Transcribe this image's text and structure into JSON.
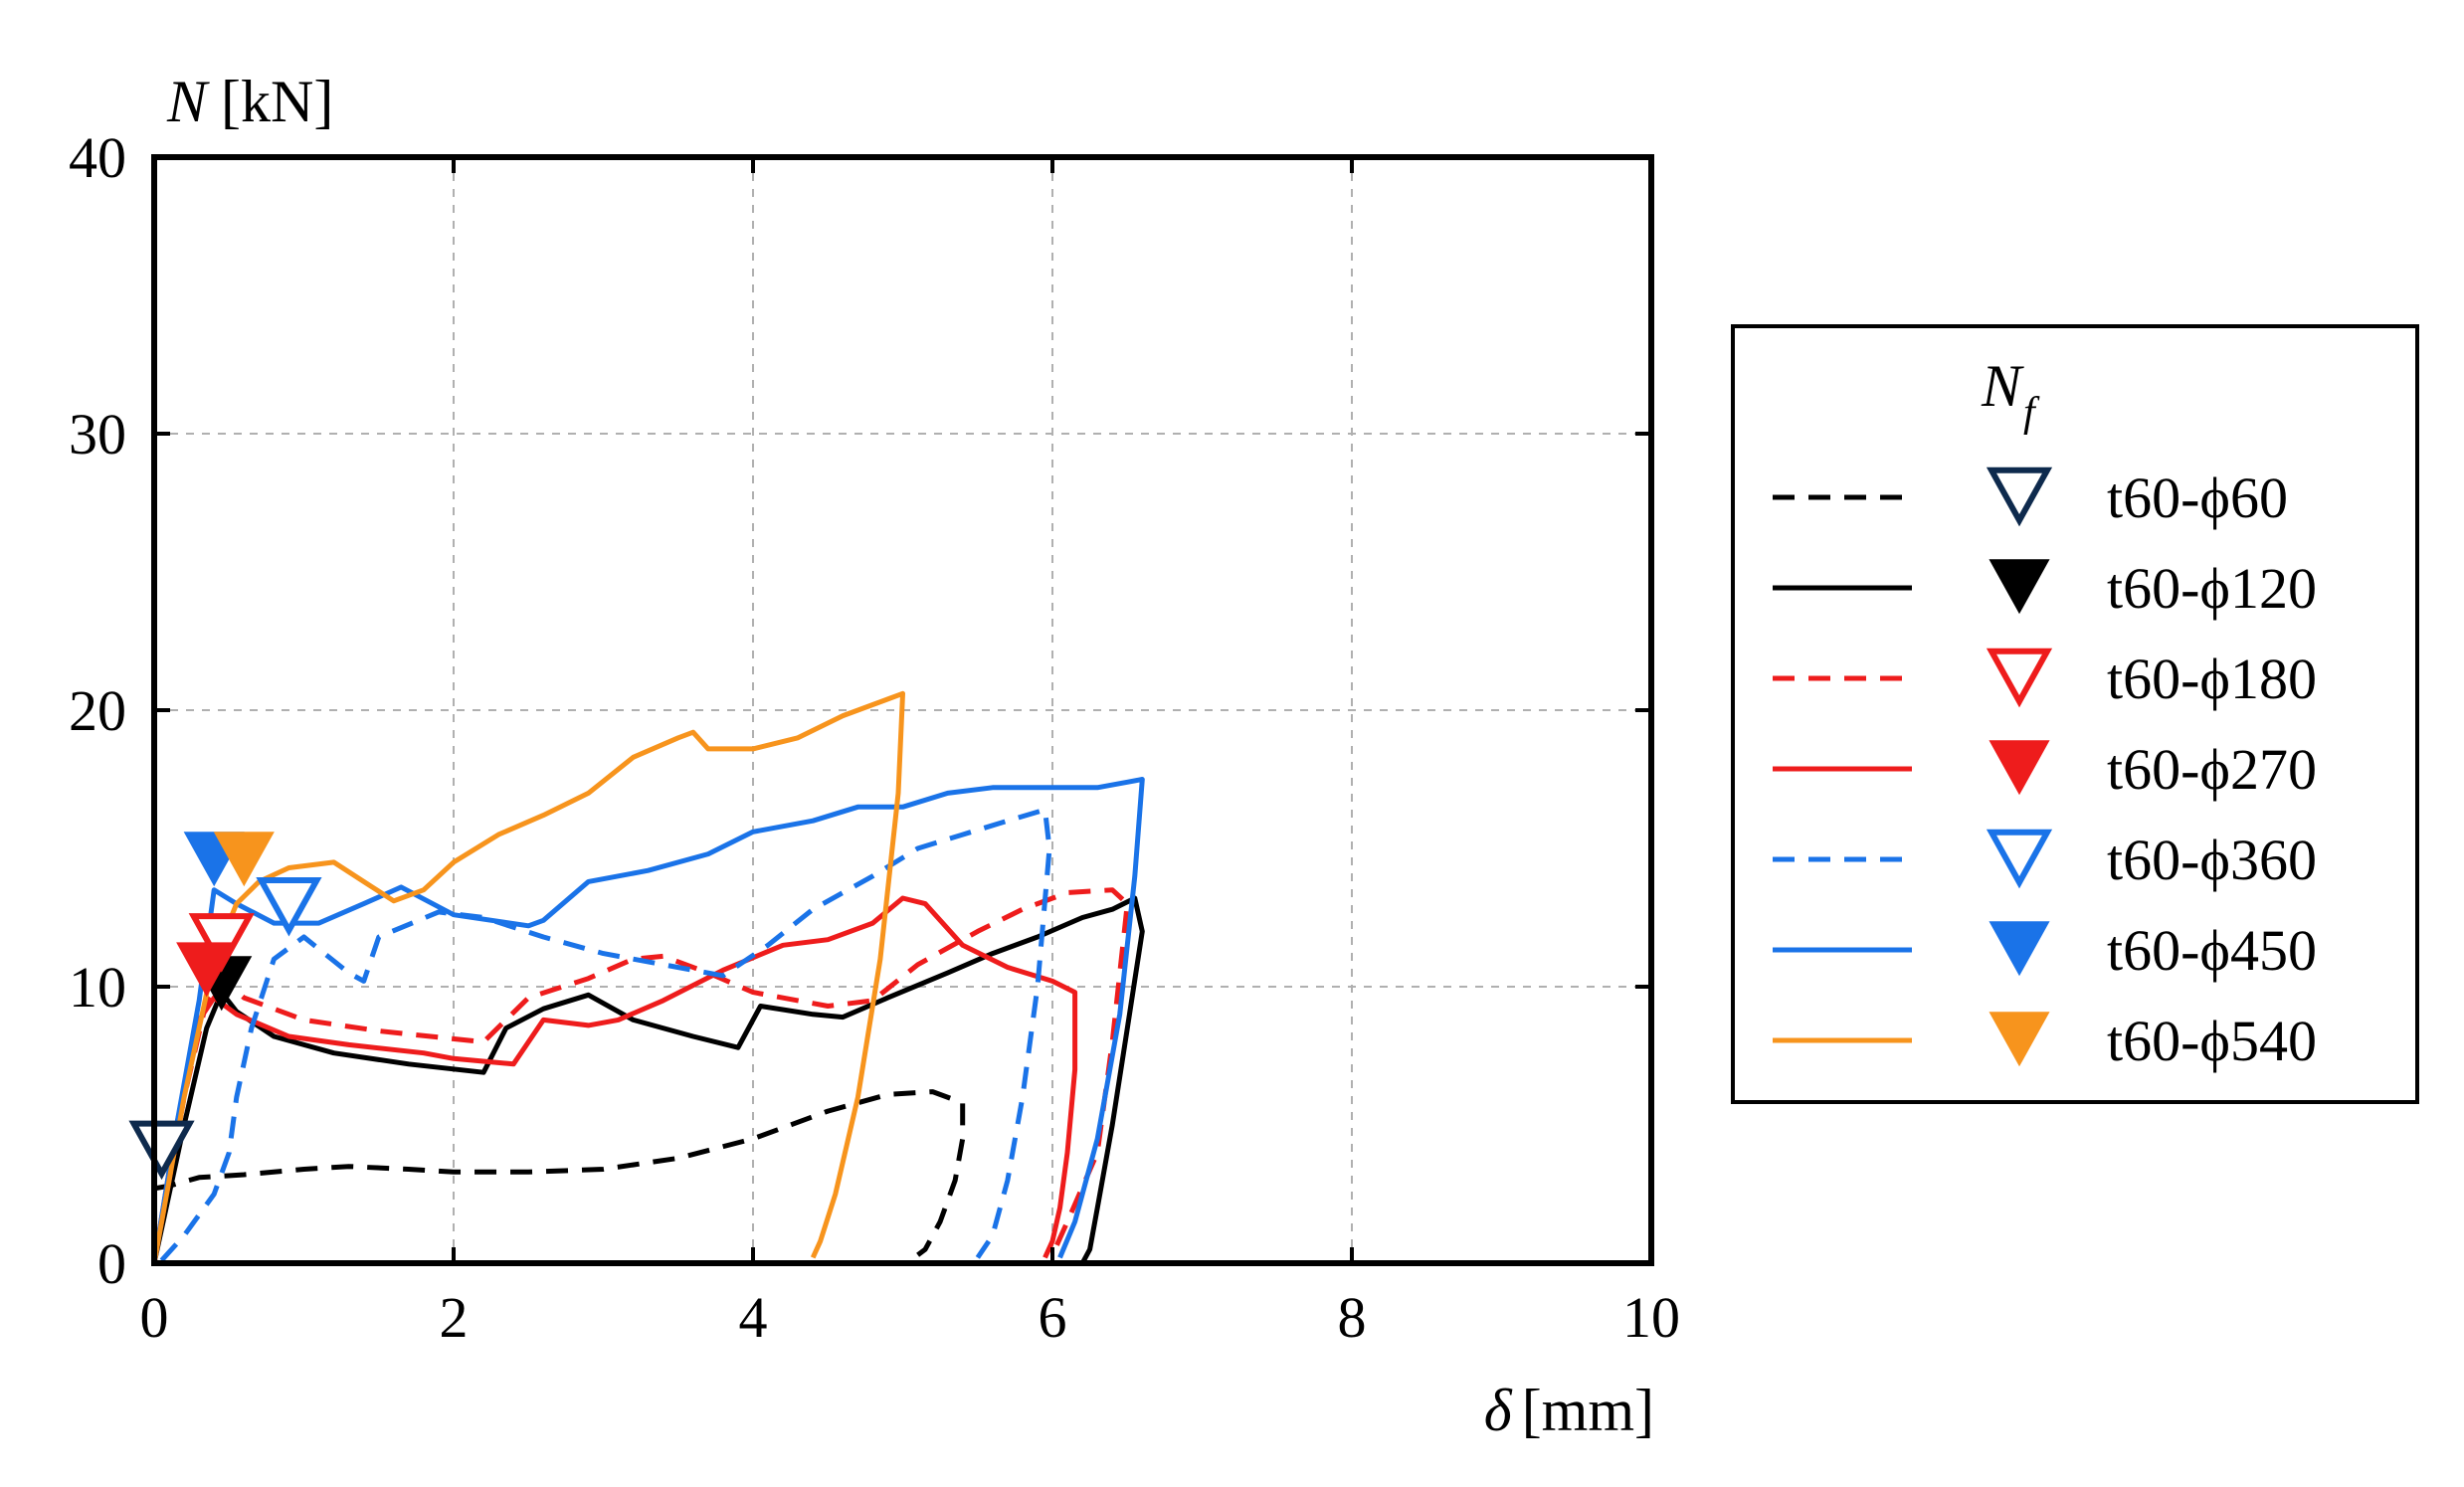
{
  "chart_data": {
    "type": "line",
    "title": "",
    "xlabel_symbol": "δ",
    "xlabel_unit": "[mm]",
    "ylabel_symbol": "N",
    "ylabel_unit": "[kN]",
    "xlim": [
      0,
      10
    ],
    "ylim": [
      0,
      40
    ],
    "xticks": [
      "0",
      "2",
      "4",
      "6",
      "8",
      "10"
    ],
    "yticks": [
      "0",
      "10",
      "20",
      "30",
      "40"
    ],
    "grid": true,
    "legend": {
      "position": "right",
      "title_base": "N",
      "title_sub": "f"
    },
    "colors": {
      "navy": "#0e2a4d",
      "black": "#000000",
      "red": "#ee1c1c",
      "blue": "#1a73e8",
      "orange": "#f7941d",
      "grid": "#b0b0b0"
    },
    "series": [
      {
        "name": "t60-ϕ60",
        "line_color": "black",
        "dash": "dash",
        "marker_color": "navy",
        "marker_filled": false,
        "marker": [
          0.05,
          4.0
        ],
        "points": [
          [
            0,
            2.7
          ],
          [
            0.1,
            2.8
          ],
          [
            0.3,
            3.1
          ],
          [
            0.6,
            3.2
          ],
          [
            1.0,
            3.4
          ],
          [
            1.3,
            3.5
          ],
          [
            1.7,
            3.4
          ],
          [
            2.0,
            3.3
          ],
          [
            2.5,
            3.3
          ],
          [
            3.0,
            3.4
          ],
          [
            3.5,
            3.8
          ],
          [
            4.0,
            4.5
          ],
          [
            4.5,
            5.5
          ],
          [
            4.9,
            6.1
          ],
          [
            5.2,
            6.2
          ],
          [
            5.4,
            5.8
          ],
          [
            5.4,
            4.5
          ],
          [
            5.35,
            3.0
          ],
          [
            5.25,
            1.5
          ],
          [
            5.15,
            0.5
          ],
          [
            5.1,
            0.3
          ]
        ]
      },
      {
        "name": "t60-ϕ120",
        "line_color": "black",
        "dash": "solid",
        "marker_color": "black",
        "marker_filled": true,
        "marker": [
          0.45,
          10.0
        ],
        "points": [
          [
            0,
            0
          ],
          [
            0.2,
            5
          ],
          [
            0.35,
            8.5
          ],
          [
            0.45,
            9.8
          ],
          [
            0.55,
            9.1
          ],
          [
            0.8,
            8.2
          ],
          [
            1.2,
            7.6
          ],
          [
            1.7,
            7.2
          ],
          [
            2.2,
            6.9
          ],
          [
            2.35,
            8.5
          ],
          [
            2.6,
            9.2
          ],
          [
            2.9,
            9.7
          ],
          [
            3.2,
            8.8
          ],
          [
            3.6,
            8.2
          ],
          [
            3.9,
            7.8
          ],
          [
            4.05,
            9.3
          ],
          [
            4.4,
            9.0
          ],
          [
            4.6,
            8.9
          ],
          [
            4.9,
            9.6
          ],
          [
            5.3,
            10.5
          ],
          [
            5.6,
            11.2
          ],
          [
            5.9,
            11.8
          ],
          [
            6.2,
            12.5
          ],
          [
            6.4,
            12.8
          ],
          [
            6.55,
            13.2
          ],
          [
            6.6,
            12.0
          ],
          [
            6.5,
            8.5
          ],
          [
            6.4,
            5.0
          ],
          [
            6.3,
            2.0
          ],
          [
            6.25,
            0.5
          ],
          [
            6.2,
            0
          ]
        ]
      },
      {
        "name": "t60-ϕ180",
        "line_color": "red",
        "dash": "dash",
        "marker_color": "red",
        "marker_filled": false,
        "marker": [
          0.45,
          11.5
        ],
        "points": [
          [
            0,
            0
          ],
          [
            0.2,
            6
          ],
          [
            0.35,
            9.5
          ],
          [
            0.45,
            10.3
          ],
          [
            0.6,
            9.6
          ],
          [
            1.0,
            8.8
          ],
          [
            1.5,
            8.4
          ],
          [
            2.2,
            8.0
          ],
          [
            2.5,
            9.6
          ],
          [
            2.9,
            10.3
          ],
          [
            3.2,
            11.0
          ],
          [
            3.4,
            11.1
          ],
          [
            3.7,
            10.5
          ],
          [
            4.0,
            9.8
          ],
          [
            4.5,
            9.3
          ],
          [
            4.8,
            9.5
          ],
          [
            5.1,
            10.8
          ],
          [
            5.5,
            12.0
          ],
          [
            5.8,
            12.8
          ],
          [
            6.1,
            13.4
          ],
          [
            6.4,
            13.5
          ],
          [
            6.5,
            13.0
          ],
          [
            6.4,
            8.0
          ],
          [
            6.3,
            4.0
          ],
          [
            6.1,
            1.5
          ],
          [
            6.0,
            0.3
          ]
        ]
      },
      {
        "name": "t60-ϕ270",
        "line_color": "red",
        "dash": "solid",
        "marker_color": "red",
        "marker_filled": true,
        "marker": [
          0.35,
          10.5
        ],
        "points": [
          [
            0,
            0
          ],
          [
            0.15,
            5
          ],
          [
            0.3,
            8.8
          ],
          [
            0.4,
            9.6
          ],
          [
            0.55,
            9.0
          ],
          [
            0.9,
            8.2
          ],
          [
            1.3,
            7.9
          ],
          [
            1.8,
            7.6
          ],
          [
            2.0,
            7.4
          ],
          [
            2.4,
            7.2
          ],
          [
            2.6,
            8.8
          ],
          [
            2.9,
            8.6
          ],
          [
            3.1,
            8.8
          ],
          [
            3.4,
            9.5
          ],
          [
            3.8,
            10.6
          ],
          [
            4.2,
            11.5
          ],
          [
            4.5,
            11.7
          ],
          [
            4.8,
            12.3
          ],
          [
            5.0,
            13.2
          ],
          [
            5.15,
            13.0
          ],
          [
            5.4,
            11.5
          ],
          [
            5.7,
            10.7
          ],
          [
            6.0,
            10.2
          ],
          [
            6.15,
            9.8
          ],
          [
            6.15,
            7.0
          ],
          [
            6.1,
            4.0
          ],
          [
            6.05,
            2.0
          ],
          [
            6.0,
            0.8
          ],
          [
            5.95,
            0.2
          ]
        ]
      },
      {
        "name": "t60-ϕ360",
        "line_color": "blue",
        "dash": "dash",
        "marker_color": "blue",
        "marker_filled": false,
        "marker": [
          0.9,
          12.8
        ],
        "points": [
          [
            0.05,
            0.1
          ],
          [
            0.2,
            1.0
          ],
          [
            0.4,
            2.5
          ],
          [
            0.5,
            4.0
          ],
          [
            0.55,
            6.0
          ],
          [
            0.65,
            8.5
          ],
          [
            0.8,
            11.0
          ],
          [
            1.0,
            11.8
          ],
          [
            1.3,
            10.5
          ],
          [
            1.4,
            10.2
          ],
          [
            1.5,
            11.8
          ],
          [
            1.9,
            12.7
          ],
          [
            2.2,
            12.5
          ],
          [
            2.6,
            11.8
          ],
          [
            3.0,
            11.2
          ],
          [
            3.4,
            10.8
          ],
          [
            3.8,
            10.4
          ],
          [
            4.1,
            11.5
          ],
          [
            4.4,
            12.8
          ],
          [
            4.8,
            14.0
          ],
          [
            5.1,
            15.0
          ],
          [
            5.4,
            15.5
          ],
          [
            5.7,
            16.0
          ],
          [
            5.95,
            16.4
          ],
          [
            5.98,
            15.0
          ],
          [
            5.9,
            10.0
          ],
          [
            5.8,
            6.0
          ],
          [
            5.7,
            3.0
          ],
          [
            5.6,
            1.0
          ],
          [
            5.5,
            0.2
          ]
        ]
      },
      {
        "name": "t60-ϕ450",
        "line_color": "blue",
        "dash": "solid",
        "marker_color": "blue",
        "marker_filled": true,
        "marker": [
          0.4,
          14.5
        ],
        "points": [
          [
            0,
            0
          ],
          [
            0.15,
            5
          ],
          [
            0.3,
            9.5
          ],
          [
            0.4,
            13.5
          ],
          [
            0.55,
            13.0
          ],
          [
            0.8,
            12.3
          ],
          [
            1.1,
            12.3
          ],
          [
            1.4,
            13.0
          ],
          [
            1.65,
            13.6
          ],
          [
            2.0,
            12.6
          ],
          [
            2.5,
            12.2
          ],
          [
            2.6,
            12.4
          ],
          [
            2.9,
            13.8
          ],
          [
            3.3,
            14.2
          ],
          [
            3.7,
            14.8
          ],
          [
            4.0,
            15.6
          ],
          [
            4.4,
            16.0
          ],
          [
            4.7,
            16.5
          ],
          [
            5.0,
            16.5
          ],
          [
            5.3,
            17.0
          ],
          [
            5.6,
            17.2
          ],
          [
            6.0,
            17.2
          ],
          [
            6.3,
            17.2
          ],
          [
            6.5,
            17.4
          ],
          [
            6.6,
            17.5
          ],
          [
            6.55,
            14.0
          ],
          [
            6.45,
            9.0
          ],
          [
            6.3,
            4.5
          ],
          [
            6.15,
            1.5
          ],
          [
            6.05,
            0.2
          ]
        ]
      },
      {
        "name": "t60-ϕ540",
        "line_color": "orange",
        "dash": "solid",
        "marker_color": "orange",
        "marker_filled": true,
        "marker": [
          0.6,
          14.5
        ],
        "points": [
          [
            0,
            0
          ],
          [
            0.2,
            6
          ],
          [
            0.4,
            11
          ],
          [
            0.55,
            13.0
          ],
          [
            0.7,
            13.8
          ],
          [
            0.9,
            14.3
          ],
          [
            1.2,
            14.5
          ],
          [
            1.4,
            13.8
          ],
          [
            1.6,
            13.1
          ],
          [
            1.8,
            13.5
          ],
          [
            2.0,
            14.5
          ],
          [
            2.3,
            15.5
          ],
          [
            2.6,
            16.2
          ],
          [
            2.9,
            17.0
          ],
          [
            3.2,
            18.3
          ],
          [
            3.5,
            19.0
          ],
          [
            3.6,
            19.2
          ],
          [
            3.7,
            18.6
          ],
          [
            4.0,
            18.6
          ],
          [
            4.3,
            19.0
          ],
          [
            4.6,
            19.8
          ],
          [
            4.9,
            20.4
          ],
          [
            5.0,
            20.6
          ],
          [
            4.97,
            17.0
          ],
          [
            4.85,
            11.0
          ],
          [
            4.7,
            6.0
          ],
          [
            4.55,
            2.5
          ],
          [
            4.45,
            0.8
          ],
          [
            4.4,
            0.2
          ]
        ]
      }
    ]
  }
}
